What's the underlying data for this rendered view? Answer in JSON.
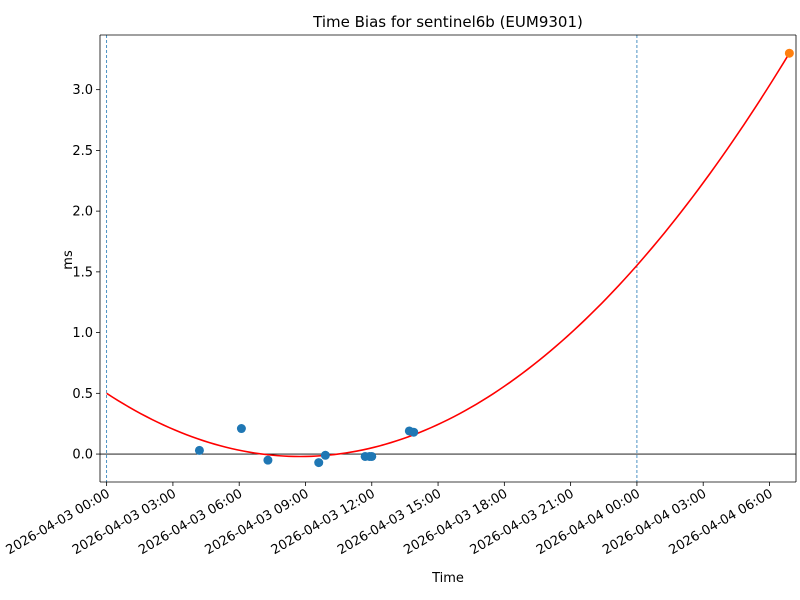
{
  "chart_data": {
    "type": "scatter",
    "title": "Time Bias for sentinel6b (EUM9301)",
    "xlabel": "Time",
    "ylabel": "ms",
    "x_start": "2026-04-03 00:00",
    "xlim_hours": [
      -0.3,
      31.2
    ],
    "ylim": [
      -0.23,
      3.45
    ],
    "x_ticks": [
      {
        "label": "2026-04-03 00:00",
        "h": 0
      },
      {
        "label": "2026-04-03 03:00",
        "h": 3
      },
      {
        "label": "2026-04-03 06:00",
        "h": 6
      },
      {
        "label": "2026-04-03 09:00",
        "h": 9
      },
      {
        "label": "2026-04-03 12:00",
        "h": 12
      },
      {
        "label": "2026-04-03 15:00",
        "h": 15
      },
      {
        "label": "2026-04-03 18:00",
        "h": 18
      },
      {
        "label": "2026-04-03 21:00",
        "h": 21
      },
      {
        "label": "2026-04-04 00:00",
        "h": 24
      },
      {
        "label": "2026-04-04 03:00",
        "h": 27
      },
      {
        "label": "2026-04-04 06:00",
        "h": 30
      }
    ],
    "y_ticks": [
      {
        "label": "0.0",
        "v": 0.0
      },
      {
        "label": "0.5",
        "v": 0.5
      },
      {
        "label": "1.0",
        "v": 1.0
      },
      {
        "label": "1.5",
        "v": 1.5
      },
      {
        "label": "2.0",
        "v": 2.0
      },
      {
        "label": "2.5",
        "v": 2.5
      },
      {
        "label": "3.0",
        "v": 3.0
      }
    ],
    "series": [
      {
        "color": "#1f77b4",
        "marker": "circle",
        "points": [
          {
            "h": 4.2,
            "v": 0.03
          },
          {
            "h": 6.1,
            "v": 0.21
          },
          {
            "h": 7.3,
            "v": -0.05
          },
          {
            "h": 9.6,
            "v": -0.07
          },
          {
            "h": 9.9,
            "v": -0.01
          },
          {
            "h": 11.7,
            "v": -0.02
          },
          {
            "h": 11.9,
            "v": -0.02
          },
          {
            "h": 12.0,
            "v": -0.02
          },
          {
            "h": 13.7,
            "v": 0.19
          },
          {
            "h": 13.9,
            "v": 0.18
          }
        ]
      },
      {
        "color": "#ff7f0e",
        "marker": "circle",
        "points": [
          {
            "h": 30.9,
            "v": 3.3
          }
        ]
      },
      {
        "color": "#ff0000",
        "type": "line",
        "fit": "quadratic",
        "points": [
          {
            "h": 0.0,
            "v": 0.5
          },
          {
            "h": 8.8,
            "v": -0.02
          },
          {
            "h": 30.9,
            "v": 3.3
          }
        ]
      }
    ],
    "vlines": [
      {
        "h": 0,
        "color": "#1f77b4",
        "style": "dashed"
      },
      {
        "h": 24,
        "color": "#1f77b4",
        "style": "dashed"
      }
    ],
    "hlines": [
      {
        "v": 0,
        "color": "#000000",
        "style": "solid"
      }
    ],
    "grid": false,
    "legend": "none"
  }
}
